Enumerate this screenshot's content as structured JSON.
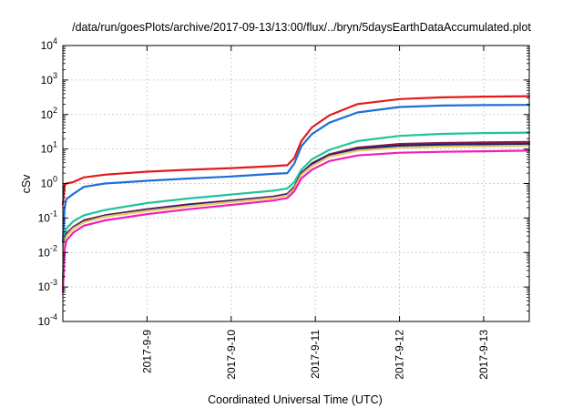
{
  "chart_data": {
    "type": "line",
    "title": "/data/run/goesPlots/archive/2017-09-13/13:00/flux/../bryn/5daysEarthDataAccumulated.plot",
    "xlabel": "Coordinated Universal Time (UTC)",
    "ylabel": "cSv",
    "y_scale": "log",
    "ylim": [
      0.0001,
      10000
    ],
    "xlim": [
      "2017-09-08 00:00",
      "2017-09-13 13:00"
    ],
    "grid": true,
    "legend": "none",
    "x_tick_labels": [
      "2017-9-9",
      "2017-9-10",
      "2017-9-11",
      "2017-9-12",
      "2017-9-13"
    ],
    "x_ticks": [
      "2017-09-09",
      "2017-09-10",
      "2017-09-11",
      "2017-09-12",
      "2017-09-13"
    ],
    "y_ticks": [
      {
        "value": 0.0001,
        "base": "10",
        "exp": "-4"
      },
      {
        "value": 0.001,
        "base": "10",
        "exp": "-3"
      },
      {
        "value": 0.01,
        "base": "10",
        "exp": "-2"
      },
      {
        "value": 0.1,
        "base": "10",
        "exp": "-1"
      },
      {
        "value": 1,
        "base": "10",
        "exp": "0"
      },
      {
        "value": 10,
        "base": "10",
        "exp": "1"
      },
      {
        "value": 100,
        "base": "10",
        "exp": "2"
      },
      {
        "value": 1000,
        "base": "10",
        "exp": "3"
      },
      {
        "value": 10000,
        "base": "10",
        "exp": "4"
      }
    ],
    "x": [
      "2017-09-08 00:00",
      "2017-09-08 00:30",
      "2017-09-08 01:00",
      "2017-09-08 03:00",
      "2017-09-08 06:00",
      "2017-09-08 12:00",
      "2017-09-09 00:00",
      "2017-09-09 12:00",
      "2017-09-10 00:00",
      "2017-09-10 12:00",
      "2017-09-10 16:00",
      "2017-09-10 18:00",
      "2017-09-10 20:00",
      "2017-09-10 23:00",
      "2017-09-11 04:00",
      "2017-09-11 12:00",
      "2017-09-12 00:00",
      "2017-09-12 12:00",
      "2017-09-13 00:00",
      "2017-09-13 13:00"
    ],
    "series": [
      {
        "color": "#e31a1c",
        "values": [
          0.25,
          0.9,
          1.0,
          1.1,
          1.5,
          1.8,
          2.2,
          2.5,
          2.8,
          3.2,
          3.4,
          5.5,
          17,
          42,
          95,
          200,
          280,
          315,
          330,
          340
        ]
      },
      {
        "color": "#1f6fd6",
        "values": [
          0.02,
          0.2,
          0.35,
          0.5,
          0.8,
          1.0,
          1.2,
          1.4,
          1.6,
          1.9,
          2.0,
          3.8,
          12,
          27,
          58,
          115,
          165,
          182,
          188,
          190
        ]
      },
      {
        "color": "#1fc49a",
        "values": [
          0.0015,
          0.03,
          0.05,
          0.08,
          0.12,
          0.17,
          0.27,
          0.37,
          0.48,
          0.62,
          0.72,
          1.1,
          2.5,
          5.0,
          9.5,
          17,
          24,
          27.5,
          29,
          30
        ]
      },
      {
        "color": "#8b1a4a",
        "values": [
          0.001,
          0.02,
          0.035,
          0.055,
          0.085,
          0.12,
          0.18,
          0.25,
          0.32,
          0.42,
          0.5,
          0.8,
          2.0,
          3.8,
          7.0,
          11,
          14,
          15,
          15.5,
          16
        ]
      },
      {
        "color": "#1a237e",
        "values": [
          0.001,
          0.02,
          0.033,
          0.052,
          0.08,
          0.115,
          0.17,
          0.24,
          0.31,
          0.4,
          0.48,
          0.75,
          1.9,
          3.6,
          6.5,
          10,
          12.5,
          13.3,
          13.7,
          14
        ]
      },
      {
        "color": "#e8c860",
        "values": [
          0.0009,
          0.018,
          0.03,
          0.05,
          0.075,
          0.11,
          0.16,
          0.22,
          0.29,
          0.38,
          0.45,
          0.7,
          1.8,
          3.2,
          6.0,
          9.0,
          11,
          11.7,
          12,
          12.5
        ]
      },
      {
        "color": "#ee1fbf",
        "values": [
          0.0007,
          0.012,
          0.022,
          0.038,
          0.06,
          0.085,
          0.13,
          0.18,
          0.24,
          0.32,
          0.38,
          0.6,
          1.4,
          2.5,
          4.5,
          6.5,
          7.8,
          8.3,
          8.6,
          9
        ]
      }
    ]
  }
}
